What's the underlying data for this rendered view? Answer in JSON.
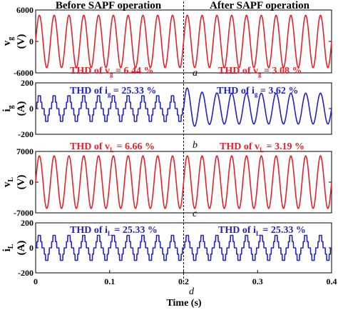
{
  "headers": {
    "before": "Before SAPF operation",
    "after": "After SAPF operation"
  },
  "xlabel": "Time (s)",
  "xlabel_letter": "d",
  "colors": {
    "voltage": "#e8202a",
    "current": "#2222cc"
  },
  "chart_data": [
    {
      "type": "line",
      "panel": "vg",
      "ylabel_main": "v",
      "ylabel_sub": "g",
      "ylabel_unit": "(V)",
      "ylim": [
        -6000,
        6000
      ],
      "yticks": [
        "6000",
        "0",
        "-6000"
      ],
      "xlim": [
        0,
        0.4
      ],
      "series": [
        {
          "segment": "before",
          "waveform": "sine",
          "amplitude": 5000,
          "frequency_hz": 50,
          "t": [
            0,
            0.2
          ],
          "color": "voltage"
        },
        {
          "segment": "after",
          "waveform": "sine",
          "amplitude": 5000,
          "frequency_hz": 50,
          "t": [
            0.2,
            0.4
          ],
          "color": "voltage"
        }
      ],
      "annotations": [
        {
          "pre": "THD of v",
          "sub": "g",
          "post": " = 6.44 %",
          "color": "voltage"
        },
        {
          "pre": "THD of v",
          "sub": "g",
          "post": " = 3.08 %",
          "color": "voltage"
        }
      ],
      "panel_letter": "a"
    },
    {
      "type": "line",
      "panel": "ig",
      "ylabel_main": "i",
      "ylabel_sub": "g",
      "ylabel_unit": "(A)",
      "ylim": [
        -200,
        200
      ],
      "yticks": [
        "200",
        "0",
        "-200"
      ],
      "xlim": [
        0,
        0.4
      ],
      "series": [
        {
          "segment": "before",
          "waveform": "stepped",
          "amplitude": 100,
          "frequency_hz": 50,
          "t": [
            0,
            0.2
          ],
          "color": "current"
        },
        {
          "segment": "after",
          "waveform": "sine",
          "amplitude": 120,
          "frequency_hz": 50,
          "t": [
            0.2,
            0.4
          ],
          "color": "current",
          "transient_peak": 180
        }
      ],
      "annotations": [
        {
          "pre": "THD of i",
          "sub": "g",
          "post": " = 25.33 %",
          "color": "current"
        },
        {
          "pre": "THD of i",
          "sub": "g",
          "post": " = 3.62 %",
          "color": "current"
        }
      ],
      "panel_letter": "b"
    },
    {
      "type": "line",
      "panel": "vL",
      "ylabel_main": "v",
      "ylabel_sub": "L",
      "ylabel_unit": "(V)",
      "ylim": [
        -7000,
        7000
      ],
      "yticks": [
        "7000",
        "0",
        "-7000"
      ],
      "xlim": [
        0,
        0.4
      ],
      "series": [
        {
          "segment": "before",
          "waveform": "sine",
          "amplitude": 6000,
          "frequency_hz": 50,
          "t": [
            0,
            0.2
          ],
          "color": "voltage"
        },
        {
          "segment": "after",
          "waveform": "sine",
          "amplitude": 6000,
          "frequency_hz": 50,
          "t": [
            0.2,
            0.4
          ],
          "color": "voltage"
        }
      ],
      "annotations": [
        {
          "pre": "THD of v",
          "sub": "L",
          "post": " = 6.66 %",
          "color": "voltage"
        },
        {
          "pre": "THD of v",
          "sub": "L",
          "post": " = 3.19 %",
          "color": "voltage"
        }
      ],
      "panel_letter": "c"
    },
    {
      "type": "line",
      "panel": "iL",
      "ylabel_main": "i",
      "ylabel_sub": "L",
      "ylabel_unit": "(A)",
      "ylim": [
        -200,
        200
      ],
      "yticks": [
        "200",
        "0",
        "-200"
      ],
      "xlim": [
        0,
        0.4
      ],
      "xticks": [
        "0",
        "0.1",
        "0.2",
        "0.3",
        "0.4"
      ],
      "series": [
        {
          "segment": "before",
          "waveform": "stepped",
          "amplitude": 100,
          "frequency_hz": 50,
          "t": [
            0,
            0.2
          ],
          "color": "current"
        },
        {
          "segment": "after",
          "waveform": "stepped",
          "amplitude": 100,
          "frequency_hz": 50,
          "t": [
            0.2,
            0.4
          ],
          "color": "current"
        }
      ],
      "annotations": [
        {
          "pre": "THD of i",
          "sub": "L",
          "post": " = 25.33 %",
          "color": "current"
        },
        {
          "pre": "THD of i",
          "sub": "L",
          "post": " = 25.33 %",
          "color": "current"
        }
      ]
    }
  ]
}
